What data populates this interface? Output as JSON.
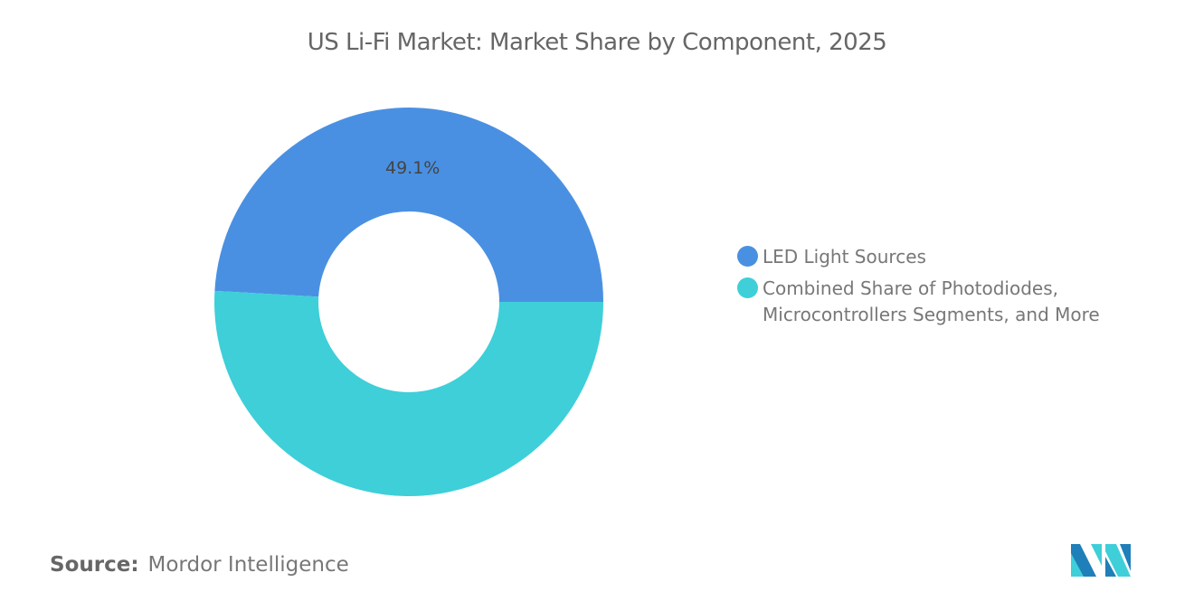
{
  "chart_data": {
    "type": "pie",
    "variant": "donut",
    "title": "US Li-Fi Market: Market Share by Component, 2025",
    "categories": [
      "LED Light Sources",
      "Combined Share of Photodiodes, Microcontrollers Segments, and More"
    ],
    "values": [
      49.1,
      50.9
    ],
    "unit": "%",
    "data_labels": [
      "49.1%",
      ""
    ],
    "colors": [
      "#4a90e2",
      "#3ecfd9"
    ],
    "legend_position": "right"
  },
  "source": {
    "label": "Source:",
    "value": "Mordor Intelligence"
  },
  "logo": {
    "name": "mordor-intelligence-logo",
    "colors": [
      "#1f7fb8",
      "#3ecfd9"
    ]
  }
}
